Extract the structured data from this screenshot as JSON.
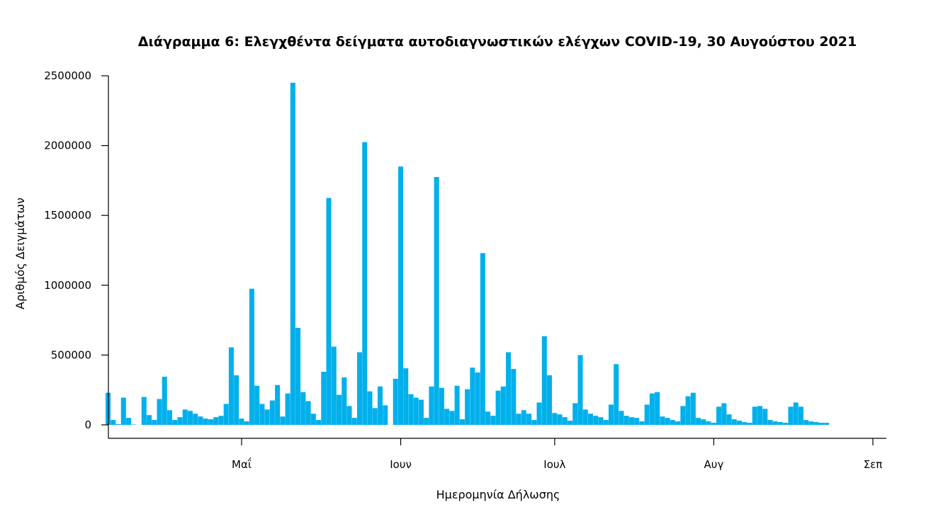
{
  "chart_data": {
    "type": "bar",
    "title": "Διάγραμμα 6: Ελεγχθέντα δείγματα αυτοδιαγνωστικών ελέγχων COVID-19, 30 Αυγούστου 2021",
    "xlabel": "Ημερομηνία Δήλωσης",
    "ylabel": "Αριθμός Δειγμάτων",
    "ylim": [
      0,
      2500000
    ],
    "yticks": [
      0,
      500000,
      1000000,
      1500000,
      2000000,
      2500000
    ],
    "ytick_labels": [
      "0",
      "500000",
      "1000000",
      "1500000",
      "2000000",
      "2500000"
    ],
    "xticks": [
      {
        "date": "2021-05-01",
        "label": "Μαΐ"
      },
      {
        "date": "2021-06-01",
        "label": "Ιουν"
      },
      {
        "date": "2021-07-01",
        "label": "Ιουλ"
      },
      {
        "date": "2021-08-01",
        "label": "Αυγ"
      },
      {
        "date": "2021-09-01",
        "label": "Σεπ"
      }
    ],
    "x_first_date": "2021-04-05",
    "color": "#00b0eb",
    "values": [
      230000,
      35000,
      5000,
      195000,
      50000,
      3000,
      0,
      200000,
      70000,
      35000,
      185000,
      345000,
      105000,
      35000,
      55000,
      110000,
      100000,
      80000,
      60000,
      45000,
      40000,
      55000,
      65000,
      150000,
      555000,
      355000,
      45000,
      25000,
      975000,
      280000,
      150000,
      110000,
      175000,
      285000,
      60000,
      225000,
      2450000,
      695000,
      235000,
      170000,
      80000,
      35000,
      380000,
      1625000,
      560000,
      215000,
      340000,
      135000,
      50000,
      520000,
      2025000,
      240000,
      120000,
      275000,
      140000,
      0,
      330000,
      1850000,
      405000,
      220000,
      195000,
      180000,
      50000,
      275000,
      1775000,
      265000,
      115000,
      100000,
      280000,
      40000,
      255000,
      410000,
      375000,
      1230000,
      95000,
      65000,
      245000,
      275000,
      520000,
      400000,
      80000,
      105000,
      80000,
      35000,
      160000,
      635000,
      355000,
      85000,
      75000,
      55000,
      30000,
      155000,
      500000,
      110000,
      80000,
      65000,
      55000,
      35000,
      145000,
      435000,
      100000,
      65000,
      55000,
      50000,
      25000,
      145000,
      225000,
      235000,
      60000,
      50000,
      35000,
      25000,
      135000,
      205000,
      230000,
      50000,
      40000,
      25000,
      15000,
      130000,
      155000,
      75000,
      40000,
      30000,
      20000,
      15000,
      130000,
      135000,
      115000,
      35000,
      25000,
      20000,
      15000,
      130000,
      160000,
      130000,
      35000,
      25000,
      20000,
      15000,
      15000
    ]
  }
}
